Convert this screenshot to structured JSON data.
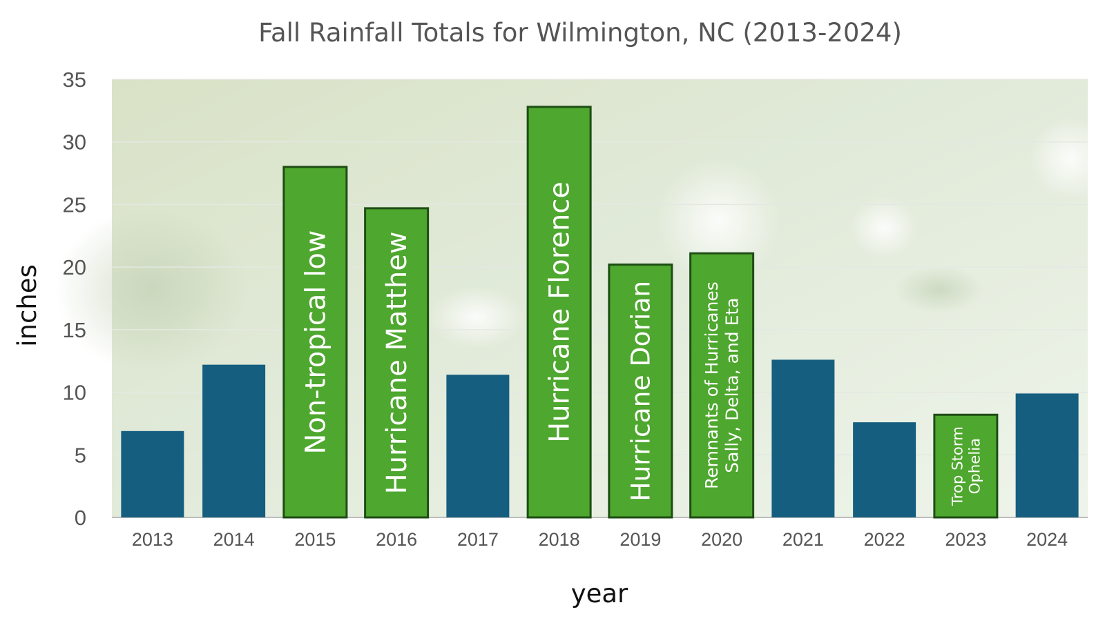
{
  "chart_data": {
    "type": "bar",
    "title": "Fall Rainfall Totals for Wilmington, NC  (2013-2024)",
    "xlabel": "year",
    "ylabel": "inches",
    "ylim": [
      0,
      35
    ],
    "yticks": [
      0,
      5,
      10,
      15,
      20,
      25,
      30,
      35
    ],
    "grid": true,
    "categories": [
      "2013",
      "2014",
      "2015",
      "2016",
      "2017",
      "2018",
      "2019",
      "2020",
      "2021",
      "2022",
      "2023",
      "2024"
    ],
    "values": [
      6.9,
      12.2,
      28.0,
      24.7,
      11.4,
      32.8,
      20.2,
      21.1,
      12.6,
      7.6,
      8.2,
      9.9
    ],
    "bars": [
      {
        "year": "2013",
        "value": 6.9,
        "color": "#155e80",
        "label": []
      },
      {
        "year": "2014",
        "value": 12.2,
        "color": "#155e80",
        "label": []
      },
      {
        "year": "2015",
        "value": 28.0,
        "color": "#4ea72e",
        "label": [
          "Non-tropical low"
        ]
      },
      {
        "year": "2016",
        "value": 24.7,
        "color": "#4ea72e",
        "label": [
          "Hurricane Matthew"
        ]
      },
      {
        "year": "2017",
        "value": 11.4,
        "color": "#155e80",
        "label": []
      },
      {
        "year": "2018",
        "value": 32.8,
        "color": "#4ea72e",
        "label": [
          "Hurricane Florence"
        ]
      },
      {
        "year": "2019",
        "value": 20.2,
        "color": "#4ea72e",
        "label": [
          "Hurricane Dorian"
        ]
      },
      {
        "year": "2020",
        "value": 21.1,
        "color": "#4ea72e",
        "label": [
          "Remnants of Hurricanes",
          "Sally,  Delta, and Eta"
        ]
      },
      {
        "year": "2021",
        "value": 12.6,
        "color": "#155e80",
        "label": []
      },
      {
        "year": "2022",
        "value": 7.6,
        "color": "#155e80",
        "label": []
      },
      {
        "year": "2023",
        "value": 8.2,
        "color": "#4ea72e",
        "label": [
          "Trop Storm",
          "Ophelia"
        ]
      },
      {
        "year": "2024",
        "value": 9.9,
        "color": "#155e80",
        "label": []
      }
    ]
  }
}
